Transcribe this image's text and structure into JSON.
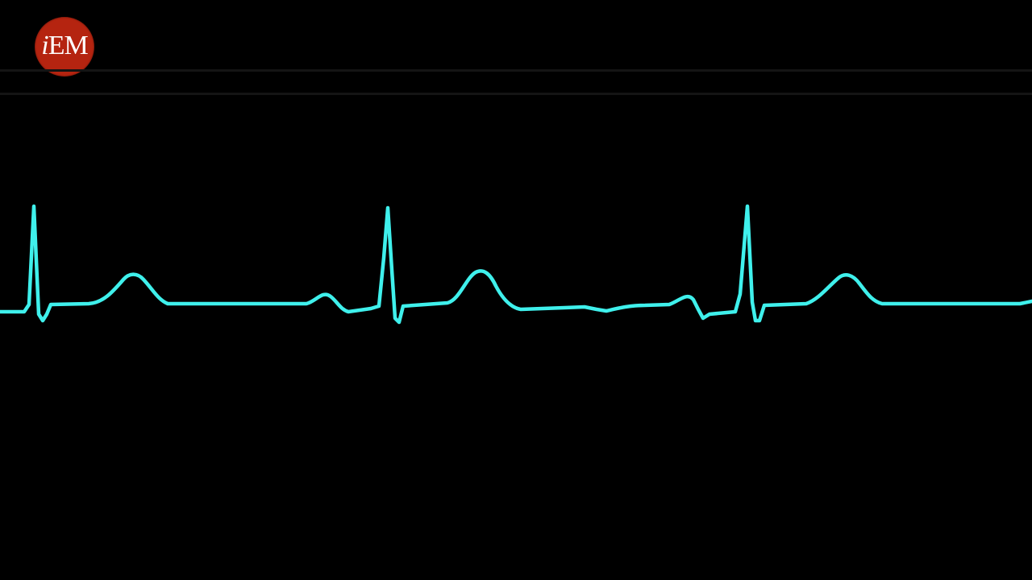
{
  "logo": {
    "text_i": "i",
    "text_em": "EM",
    "icon": "iem-logo-icon",
    "background_color": "#b52410",
    "text_color": "#ffffff"
  },
  "screen": {
    "background_color": "#000000",
    "divider_color": "#141414"
  },
  "trace": {
    "icon": "ecg-waveform",
    "color": "#3ff0ec"
  }
}
